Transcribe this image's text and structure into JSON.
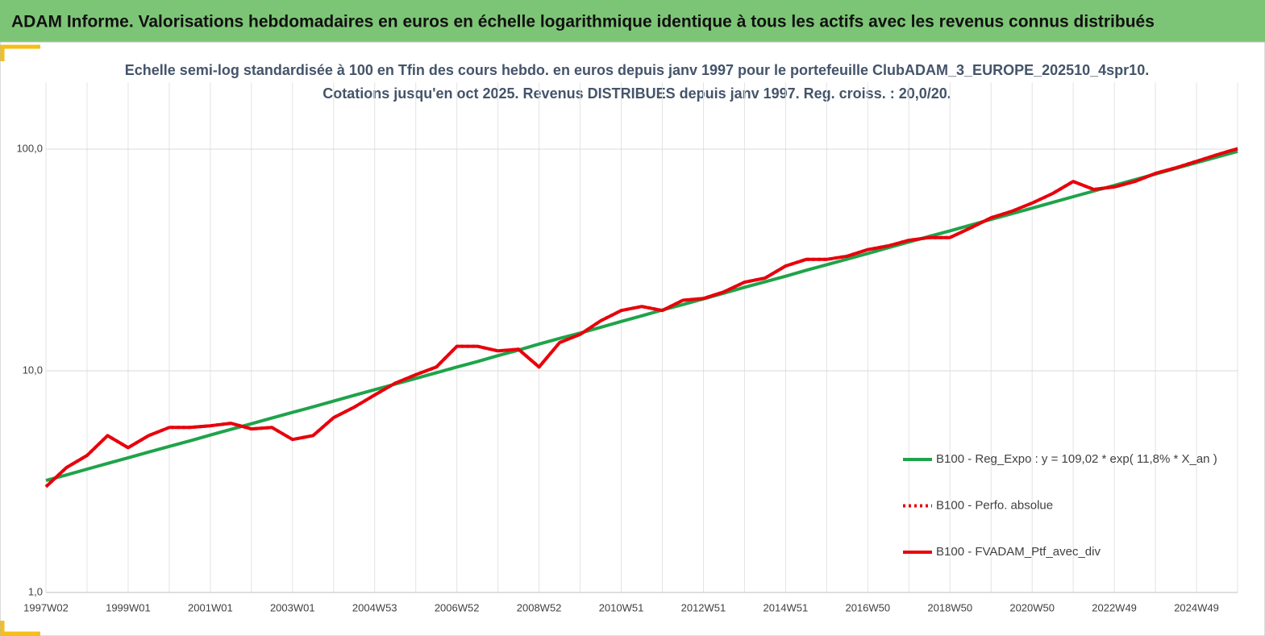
{
  "chart_data": {
    "type": "line",
    "title": "ADAM Informe. Valorisations hebdomadaires en euros en échelle logarithmique identique à tous les actifs avec les revenus connus distribués",
    "subtitle_lines": [
      "Echelle semi-log standardisée à 100 en Tfin des cours hebdo.  en euros depuis janv 1997 pour le portefeuille ClubADAM_3_EUROPE_202510_4spr10.",
      "Cotations jusqu'en oct 2025. Revenus DISTRIBUES depuis janv 1997. Reg. croiss. : 20,0/20."
    ],
    "categories": [
      "1997W02",
      null,
      null,
      null,
      "1999W01",
      null,
      null,
      null,
      "2001W01",
      null,
      null,
      null,
      "2003W01",
      null,
      null,
      null,
      "2004W53",
      null,
      null,
      null,
      "2006W52",
      null,
      null,
      null,
      "2008W52",
      null,
      null,
      null,
      "2010W51",
      null,
      null,
      null,
      "2012W51",
      null,
      null,
      null,
      "2014W51",
      null,
      null,
      null,
      "2016W50",
      null,
      null,
      null,
      "2018W50",
      null,
      null,
      null,
      "2020W50",
      null,
      null,
      null,
      "2022W49",
      null,
      null,
      null,
      "2024W49",
      null,
      null
    ],
    "log_scale": true,
    "ylim": [
      1,
      200
    ],
    "yticks": [
      {
        "value": 1,
        "label": "1,0"
      },
      {
        "value": 10,
        "label": "10,0"
      },
      {
        "value": 100,
        "label": "100,0"
      }
    ],
    "grid": true,
    "legend": "right",
    "series": [
      {
        "name": "B100 - Reg_Expo : y = 109,02 * exp( 11,8% *  X_an )",
        "color": "#1fa34a",
        "dash": "solid",
        "values": [
          3.2,
          3.39,
          3.6,
          3.82,
          4.05,
          4.3,
          4.56,
          4.83,
          5.13,
          5.44,
          5.77,
          6.12,
          6.49,
          6.88,
          7.3,
          7.75,
          8.22,
          8.71,
          9.24,
          9.8,
          10.4,
          11.0,
          11.7,
          12.4,
          13.2,
          14.0,
          14.8,
          15.7,
          16.7,
          17.7,
          18.8,
          19.9,
          21.1,
          22.4,
          23.8,
          25.2,
          26.7,
          28.4,
          30.1,
          31.9,
          33.8,
          35.9,
          38.1,
          40.4,
          42.8,
          45.4,
          48.2,
          51.1,
          54.2,
          57.5,
          61.0,
          64.7,
          68.6,
          72.8,
          77.2,
          81.9,
          86.9,
          92.1,
          97.7
        ]
      },
      {
        "name": "B100 - Perfo. absolue",
        "color": "#e8000b",
        "dash": "dotted",
        "values": [
          3.0,
          3.66,
          4.15,
          5.1,
          4.5,
          5.1,
          5.55,
          5.55,
          5.65,
          5.8,
          5.47,
          5.55,
          4.9,
          5.1,
          6.15,
          6.85,
          7.78,
          8.8,
          9.6,
          10.4,
          12.9,
          12.9,
          12.3,
          12.5,
          10.4,
          13.4,
          14.6,
          16.8,
          18.7,
          19.5,
          18.7,
          20.8,
          21.2,
          22.7,
          25.1,
          26.2,
          29.7,
          31.8,
          31.8,
          32.9,
          35.2,
          36.6,
          38.8,
          39.9,
          39.9,
          44.1,
          49.0,
          52.4,
          57.1,
          63.1,
          71.5,
          65.8,
          67.5,
          71.5,
          77.7,
          82.4,
          88.1,
          94.3,
          100.5
        ]
      },
      {
        "name": "B100 - FVADAM_Ptf_avec_div",
        "color": "#e8000b",
        "dash": "solid",
        "values": [
          3.0,
          3.66,
          4.15,
          5.1,
          4.5,
          5.1,
          5.55,
          5.55,
          5.65,
          5.8,
          5.47,
          5.55,
          4.9,
          5.1,
          6.15,
          6.85,
          7.78,
          8.8,
          9.6,
          10.4,
          12.9,
          12.9,
          12.3,
          12.5,
          10.4,
          13.4,
          14.6,
          16.8,
          18.7,
          19.5,
          18.7,
          20.8,
          21.2,
          22.7,
          25.1,
          26.2,
          29.7,
          31.8,
          31.8,
          32.9,
          35.2,
          36.6,
          38.8,
          39.9,
          39.9,
          44.1,
          49.0,
          52.4,
          57.1,
          63.1,
          71.5,
          65.8,
          67.5,
          71.5,
          77.7,
          82.4,
          88.1,
          94.3,
          100.5
        ]
      }
    ]
  }
}
